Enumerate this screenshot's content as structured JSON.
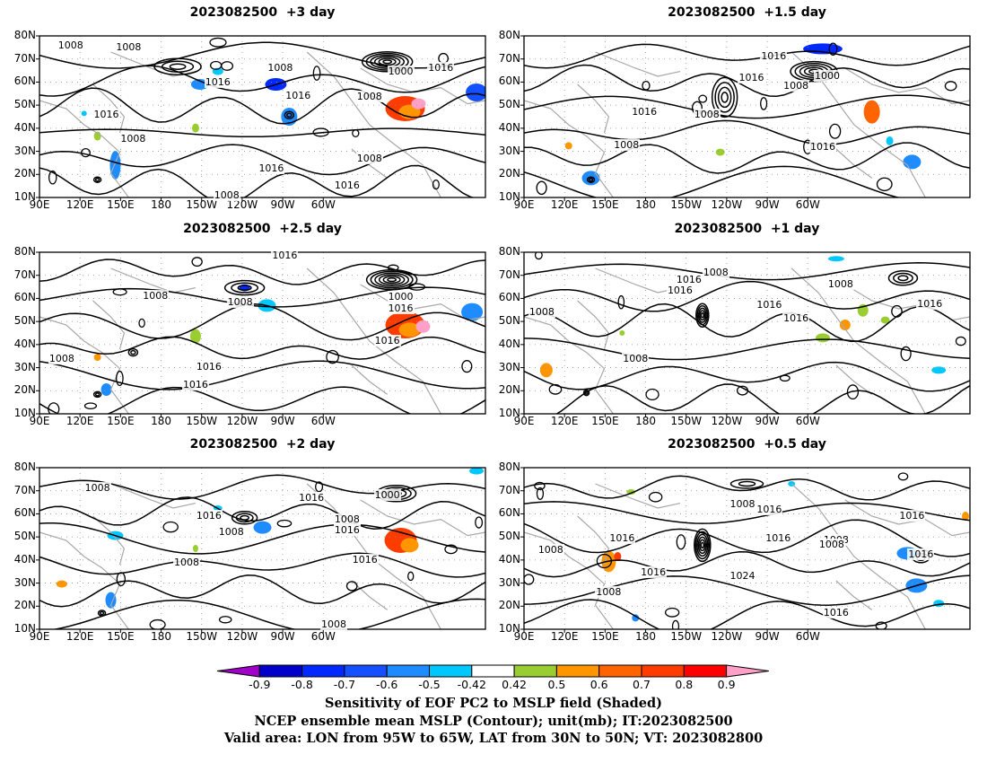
{
  "panels": [
    {
      "title": "2023082500  +3 day",
      "contour_labels": [
        "1008",
        "1008",
        "1016",
        "1016",
        "1016",
        "1000",
        "1016",
        "1008",
        "1016",
        "1008",
        "1008",
        "1016",
        "1008",
        "1008"
      ]
    },
    {
      "title": "2023082500  +1.5 day",
      "contour_labels": [
        "1016",
        "1016",
        "1008",
        "1000",
        "1016",
        "1008",
        "1008",
        "1016"
      ]
    },
    {
      "title": "2023082500  +2.5 day",
      "contour_labels": [
        "1016",
        "1008",
        "1008",
        "1000",
        "1016",
        "1008",
        "1016",
        "1016",
        "1016"
      ]
    },
    {
      "title": "2023082500  +1 day",
      "contour_labels": [
        "1008",
        "1016",
        "1008",
        "1016",
        "1008",
        "1016",
        "1016",
        "1016",
        "1008"
      ]
    },
    {
      "title": "2023082500  +2 day",
      "contour_labels": [
        "1008",
        "1016",
        "1016",
        "1008",
        "1016",
        "1000",
        "1008",
        "1016",
        "1008",
        "1008"
      ]
    },
    {
      "title": "2023082500  +0.5 day",
      "contour_labels": [
        "1008",
        "1016",
        "1008",
        "1016",
        "1016",
        "1008",
        "1008",
        "1016",
        "1016",
        "1024",
        "1016",
        "1008",
        "1016"
      ]
    }
  ],
  "axes": {
    "lat_ticks": [
      "80N",
      "70N",
      "60N",
      "50N",
      "40N",
      "30N",
      "20N",
      "10N"
    ],
    "lon_ticks": [
      "90E",
      "120E",
      "150E",
      "180",
      "150W",
      "120W",
      "90W",
      "60W"
    ]
  },
  "colorbar": {
    "tick_labels": [
      "-0.9",
      "-0.8",
      "-0.7",
      "-0.6",
      "-0.5",
      "-0.42",
      "0.42",
      "0.5",
      "0.6",
      "0.7",
      "0.8",
      "0.9"
    ],
    "colors": [
      "#a000c8",
      "#0000c8",
      "#0028ff",
      "#1450ff",
      "#1e8cff",
      "#00c8ff",
      "#ffffff",
      "#9acd32",
      "#ff9600",
      "#ff6400",
      "#ff3c00",
      "#ff0000",
      "#ffa0c8"
    ]
  },
  "captions": [
    "Sensitivity of EOF PC2 to MSLP field (Shaded)",
    "NCEP ensemble mean MSLP (Contour); unit(mb); IT:2023082500",
    "Valid area: LON from 95W to 65W, LAT from 30N to 50N; VT: 2023082800"
  ],
  "style": {
    "contour": "#000000",
    "coast": "#a8a8a8",
    "grid": "#909090"
  }
}
